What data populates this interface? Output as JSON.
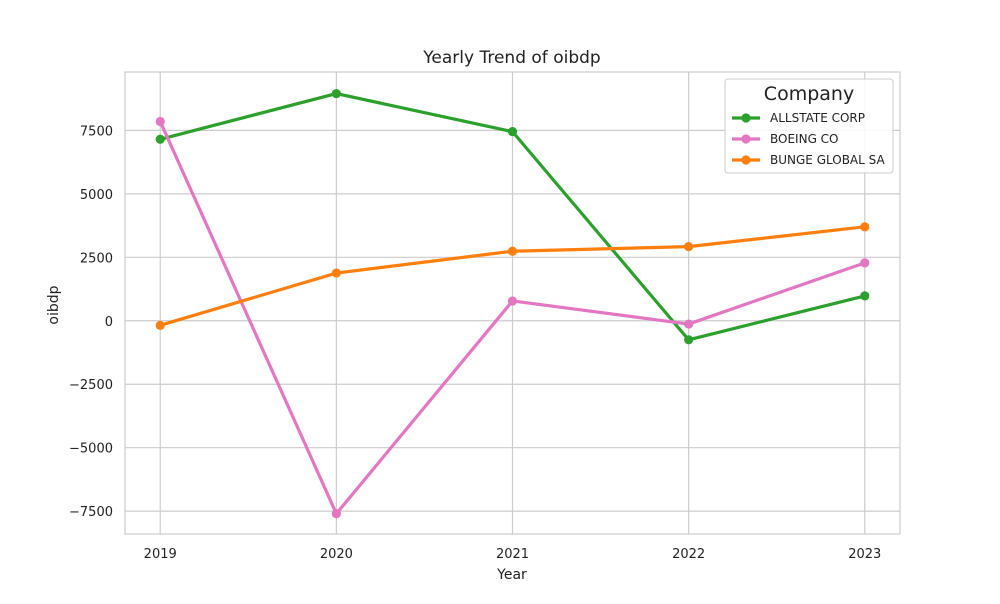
{
  "chart_data": {
    "type": "line",
    "title": "Yearly Trend of oibdp",
    "xlabel": "Year",
    "ylabel": "oibdp",
    "x": [
      2019,
      2020,
      2021,
      2022,
      2023
    ],
    "x_tick_labels": [
      "2019",
      "2020",
      "2021",
      "2022",
      "2023"
    ],
    "y_ticks": [
      -7500,
      -5000,
      -2500,
      0,
      2500,
      5000,
      7500
    ],
    "y_tick_labels": [
      "−7500",
      "−5000",
      "−2500",
      "0",
      "2500",
      "5000",
      "7500"
    ],
    "xlim": [
      2018.8,
      2023.2
    ],
    "ylim": [
      -8400,
      9800
    ],
    "grid": true,
    "legend": {
      "title": "Company",
      "placement": "top-right"
    },
    "series": [
      {
        "name": "ALLSTATE CORP",
        "color": "#2ca02c",
        "values": [
          7150,
          8950,
          7450,
          -750,
          980
        ]
      },
      {
        "name": "BOEING CO",
        "color": "#e377c2",
        "values": [
          7850,
          -7600,
          780,
          -130,
          2280
        ]
      },
      {
        "name": "BUNGE GLOBAL SA",
        "color": "#ff7f0e",
        "values": [
          -180,
          1880,
          2740,
          2920,
          3700
        ]
      }
    ]
  }
}
